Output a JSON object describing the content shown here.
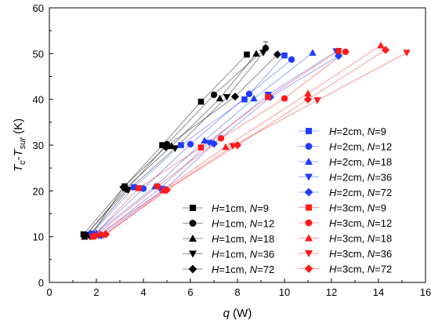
{
  "chart_data": {
    "type": "line",
    "xlabel": "q (W)",
    "ylabel": "Tc-Tsur (K)",
    "xlim": [
      0,
      16
    ],
    "ylim": [
      0,
      60
    ],
    "xticks": [
      0,
      2,
      4,
      6,
      8,
      10,
      12,
      14,
      16
    ],
    "yticks": [
      0,
      10,
      20,
      30,
      40,
      50,
      60
    ],
    "grid": false,
    "legend_placement": "bottom-right",
    "colors": {
      "black": "#000000",
      "blue": "#1f3bff",
      "red": "#ff1a1a"
    },
    "series": [
      {
        "name": "H=1cm, N=9",
        "label": [
          "H",
          "=1cm, ",
          "N",
          "=9"
        ],
        "color": "#000000",
        "marker": "square",
        "x": [
          1.45,
          3.2,
          4.8,
          6.45,
          8.4
        ],
        "y": [
          10.5,
          21.0,
          30.0,
          39.5,
          49.8
        ]
      },
      {
        "name": "H=1cm, N=12",
        "label": [
          "H",
          "=1cm, ",
          "N",
          "=12"
        ],
        "color": "#000000",
        "marker": "circle",
        "x": [
          1.55,
          3.3,
          5.0,
          7.0,
          9.2
        ],
        "y": [
          10.4,
          20.3,
          30.2,
          41.0,
          51.2
        ]
      },
      {
        "name": "H=1cm, N=18",
        "label": [
          "H",
          "=1cm, ",
          "N",
          "=18"
        ],
        "color": "#000000",
        "marker": "triangle-up",
        "x": [
          1.5,
          3.25,
          5.2,
          7.25,
          8.8
        ],
        "y": [
          10.0,
          20.6,
          29.8,
          40.2,
          50.0
        ]
      },
      {
        "name": "H=1cm, N=36",
        "label": [
          "H",
          "=1cm, ",
          "N",
          "=36"
        ],
        "color": "#000000",
        "marker": "triangle-down",
        "x": [
          1.7,
          3.35,
          5.35,
          7.55,
          9.1
        ],
        "y": [
          10.3,
          20.2,
          29.3,
          40.5,
          50.2
        ]
      },
      {
        "name": "H=1cm, N=72",
        "label": [
          "H",
          "=1cm, ",
          "N",
          "=72"
        ],
        "color": "#000000",
        "marker": "diamond",
        "x": [
          1.75,
          3.15,
          4.95,
          7.9,
          9.7
        ],
        "y": [
          10.1,
          20.8,
          29.6,
          40.6,
          49.8
        ]
      },
      {
        "name": "H=2cm, N=9",
        "label": [
          "H",
          "=2cm, ",
          "N",
          "=9"
        ],
        "color": "#1f3bff",
        "marker": "square",
        "x": [
          1.8,
          3.6,
          5.6,
          8.3,
          10.0
        ],
        "y": [
          10.7,
          20.8,
          30.0,
          40.0,
          49.6
        ]
      },
      {
        "name": "H=2cm, N=12",
        "label": [
          "H",
          "=2cm, ",
          "N",
          "=12"
        ],
        "color": "#1f3bff",
        "marker": "circle",
        "x": [
          1.9,
          4.0,
          6.0,
          8.5,
          10.3
        ],
        "y": [
          10.4,
          20.5,
          30.2,
          41.2,
          48.7
        ]
      },
      {
        "name": "H=2cm, N=18",
        "label": [
          "H",
          "=2cm, ",
          "N",
          "=18"
        ],
        "color": "#1f3bff",
        "marker": "triangle-up",
        "x": [
          2.0,
          4.5,
          6.6,
          8.7,
          11.2
        ],
        "y": [
          10.8,
          21.0,
          31.0,
          40.2,
          50.2
        ]
      },
      {
        "name": "H=2cm, N=36",
        "label": [
          "H",
          "=2cm, ",
          "N",
          "=36"
        ],
        "color": "#1f3bff",
        "marker": "triangle-down",
        "x": [
          2.1,
          4.7,
          6.8,
          9.3,
          12.2
        ],
        "y": [
          10.2,
          20.5,
          30.5,
          41.0,
          50.5
        ]
      },
      {
        "name": "H=2cm, N=72",
        "label": [
          "H",
          "=2cm, ",
          "N",
          "=72"
        ],
        "color": "#1f3bff",
        "marker": "diamond",
        "x": [
          2.2,
          4.9,
          7.0,
          9.4,
          12.3
        ],
        "y": [
          10.3,
          20.3,
          30.3,
          40.5,
          49.5
        ]
      },
      {
        "name": "H=3cm, N=9",
        "label": [
          "H",
          "=3cm, ",
          "N",
          "=9"
        ],
        "color": "#ff1a1a",
        "marker": "square",
        "x": [
          1.85,
          3.8,
          6.45,
          9.3,
          12.3
        ],
        "y": [
          10.0,
          20.6,
          29.5,
          40.5,
          50.6
        ]
      },
      {
        "name": "H=3cm, N=12",
        "label": [
          "H",
          "=3cm, ",
          "N",
          "=12"
        ],
        "color": "#ff1a1a",
        "marker": "circle",
        "x": [
          1.95,
          4.6,
          7.3,
          10.0,
          12.6
        ],
        "y": [
          10.2,
          21.0,
          31.5,
          40.2,
          50.4
        ]
      },
      {
        "name": "H=3cm, N=18",
        "label": [
          "H",
          "=3cm, ",
          "N",
          "=18"
        ],
        "color": "#ff1a1a",
        "marker": "triangle-up",
        "x": [
          2.15,
          4.85,
          7.5,
          11.0,
          14.1
        ],
        "y": [
          10.6,
          20.2,
          29.6,
          41.3,
          51.8
        ]
      },
      {
        "name": "H=3cm, N=36",
        "label": [
          "H",
          "=3cm, ",
          "N",
          "=36"
        ],
        "color": "#ff1a1a",
        "marker": "triangle-down",
        "x": [
          2.3,
          4.9,
          7.8,
          11.4,
          15.2
        ],
        "y": [
          10.3,
          20.0,
          29.8,
          39.8,
          50.2
        ]
      },
      {
        "name": "H=3cm, N=72",
        "label": [
          "H",
          "=3cm, ",
          "N",
          "=72"
        ],
        "color": "#ff1a1a",
        "marker": "diamond",
        "x": [
          2.4,
          5.0,
          8.0,
          11.0,
          14.3
        ],
        "y": [
          10.5,
          20.2,
          30.0,
          40.0,
          50.8
        ]
      }
    ],
    "legend_columns": [
      {
        "column": "left",
        "series_indices": [
          0,
          1,
          2,
          3,
          4
        ]
      },
      {
        "column": "right",
        "series_indices": [
          5,
          6,
          7,
          8,
          9,
          10,
          11,
          12,
          13,
          14
        ]
      }
    ],
    "error_bars": [
      {
        "series_index": 1,
        "point_index": 4,
        "y_low": 50.2,
        "y_high": 52.6
      }
    ]
  }
}
